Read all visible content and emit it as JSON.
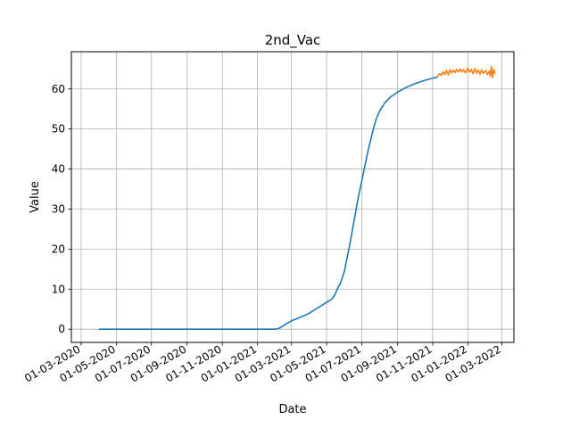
{
  "chart_data": {
    "type": "line",
    "title": "2nd_Vac",
    "xlabel": "Date",
    "ylabel": "Value",
    "x_ticks": [
      "01-03-2020",
      "01-05-2020",
      "01-07-2020",
      "01-09-2020",
      "01-11-2020",
      "01-01-2021",
      "01-03-2021",
      "01-05-2021",
      "01-07-2021",
      "01-09-2021",
      "01-11-2021",
      "01-01-2022",
      "01-03-2022"
    ],
    "y_ticks": [
      "0",
      "10",
      "20",
      "30",
      "40",
      "50",
      "60"
    ],
    "xlim": [
      "2020-02-13",
      "2022-03-22"
    ],
    "ylim": [
      -3.3,
      69.3
    ],
    "grid": true,
    "legend": "none",
    "series": [
      {
        "color": "#1f77b4",
        "points": [
          [
            "2020-04-01",
            0
          ],
          [
            "2020-07-01",
            0
          ],
          [
            "2020-10-01",
            0
          ],
          [
            "2021-01-01",
            0
          ],
          [
            "2021-02-01",
            0
          ],
          [
            "2021-02-05",
            0.1
          ],
          [
            "2021-02-10",
            0.4
          ],
          [
            "2021-02-15",
            0.9
          ],
          [
            "2021-02-22",
            1.5
          ],
          [
            "2021-03-01",
            2.1
          ],
          [
            "2021-03-10",
            2.6
          ],
          [
            "2021-03-20",
            3.2
          ],
          [
            "2021-04-01",
            4.0
          ],
          [
            "2021-04-10",
            4.8
          ],
          [
            "2021-04-20",
            5.7
          ],
          [
            "2021-05-01",
            6.7
          ],
          [
            "2021-05-10",
            7.5
          ],
          [
            "2021-05-15",
            8.5
          ],
          [
            "2021-05-20",
            10.2
          ],
          [
            "2021-05-25",
            11.5
          ],
          [
            "2021-06-01",
            14.5
          ],
          [
            "2021-06-05",
            17.5
          ],
          [
            "2021-06-10",
            21.0
          ],
          [
            "2021-06-15",
            25.0
          ],
          [
            "2021-06-20",
            29.0
          ],
          [
            "2021-06-25",
            33.0
          ],
          [
            "2021-07-01",
            37.0
          ],
          [
            "2021-07-06",
            40.5
          ],
          [
            "2021-07-11",
            44.0
          ],
          [
            "2021-07-16",
            47.0
          ],
          [
            "2021-07-21",
            50.0
          ],
          [
            "2021-07-26",
            52.5
          ],
          [
            "2021-08-01",
            54.5
          ],
          [
            "2021-08-10",
            56.5
          ],
          [
            "2021-08-20",
            58.0
          ],
          [
            "2021-09-01",
            59.2
          ],
          [
            "2021-09-15",
            60.3
          ],
          [
            "2021-10-01",
            61.3
          ],
          [
            "2021-10-15",
            62.0
          ],
          [
            "2021-11-01",
            62.7
          ],
          [
            "2021-11-10",
            63.0
          ]
        ]
      },
      {
        "color": "#ff7f0e",
        "points": [
          [
            "2021-11-10",
            63.2
          ],
          [
            "2021-11-13",
            63.8
          ],
          [
            "2021-11-16",
            63.4
          ],
          [
            "2021-11-19",
            64.3
          ],
          [
            "2021-11-22",
            63.6
          ],
          [
            "2021-11-25",
            64.6
          ],
          [
            "2021-11-28",
            63.5
          ],
          [
            "2021-12-01",
            64.8
          ],
          [
            "2021-12-04",
            64.0
          ],
          [
            "2021-12-07",
            64.7
          ],
          [
            "2021-12-10",
            64.1
          ],
          [
            "2021-12-13",
            64.9
          ],
          [
            "2021-12-16",
            64.2
          ],
          [
            "2021-12-19",
            65.0
          ],
          [
            "2021-12-22",
            64.3
          ],
          [
            "2021-12-25",
            64.8
          ],
          [
            "2021-12-28",
            64.0
          ],
          [
            "2022-01-01",
            65.2
          ],
          [
            "2022-01-04",
            64.2
          ],
          [
            "2022-01-07",
            64.9
          ],
          [
            "2022-01-10",
            63.8
          ],
          [
            "2022-01-13",
            65.1
          ],
          [
            "2022-01-16",
            64.0
          ],
          [
            "2022-01-19",
            64.7
          ],
          [
            "2022-01-22",
            63.7
          ],
          [
            "2022-01-25",
            64.8
          ],
          [
            "2022-01-28",
            63.9
          ],
          [
            "2022-02-01",
            64.6
          ],
          [
            "2022-02-04",
            63.6
          ],
          [
            "2022-02-07",
            64.4
          ],
          [
            "2022-02-09",
            63.2
          ],
          [
            "2022-02-11",
            65.6
          ],
          [
            "2022-02-13",
            62.8
          ],
          [
            "2022-02-15",
            64.9
          ],
          [
            "2022-02-17",
            63.8
          ]
        ]
      }
    ]
  }
}
